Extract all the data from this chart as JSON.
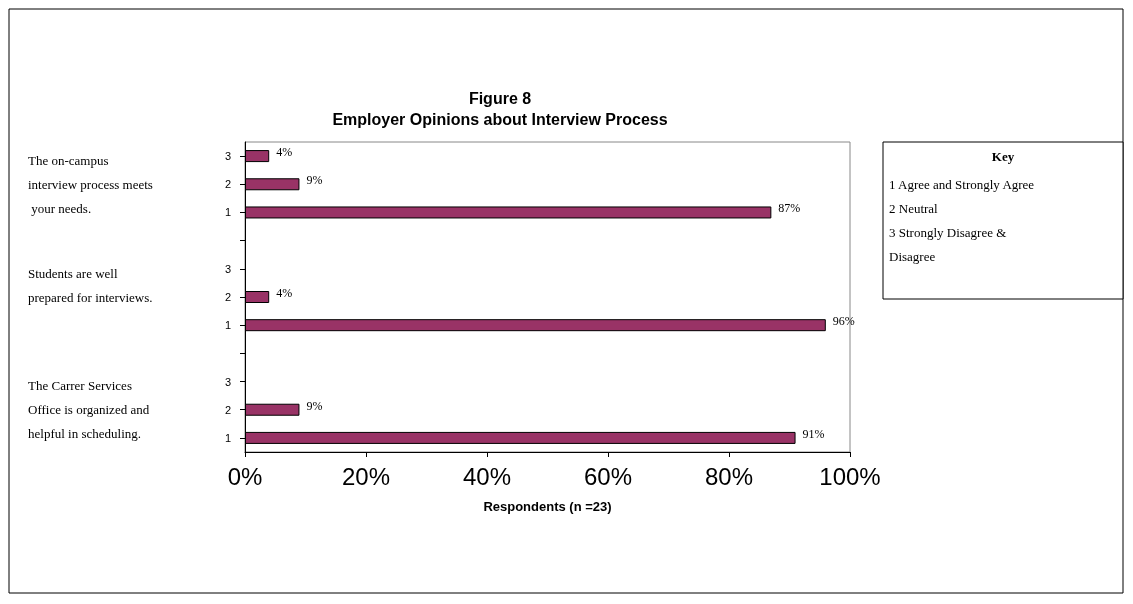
{
  "chart_data": {
    "type": "bar",
    "orientation": "horizontal",
    "title": "Figure 8\nEmployer Opinions about Interview Process",
    "xlabel": "Respondents (n =23)",
    "categories": [
      "3",
      "2",
      "1",
      null,
      "3",
      "2",
      "1",
      null,
      "3",
      "2",
      "1"
    ],
    "values": [
      4,
      9,
      87,
      null,
      null,
      4,
      96,
      null,
      null,
      9,
      91
    ],
    "value_labels": [
      "4%",
      "9%",
      "87%",
      null,
      null,
      "4%",
      "96%",
      null,
      null,
      "9%",
      "91%"
    ],
    "color": "#993366",
    "xlim": [
      0,
      100
    ],
    "xticks": [
      {
        "value": 0,
        "label": "0%"
      },
      {
        "value": 20,
        "label": "20%"
      },
      {
        "value": 40,
        "label": "40%"
      },
      {
        "value": 60,
        "label": "60%"
      },
      {
        "value": 80,
        "label": "80%"
      },
      {
        "value": 100,
        "label": "100%"
      }
    ],
    "grid": false,
    "annotations": [
      "The on-campus interview process meets your needs.",
      "Students are well prepared for interviews.",
      "The Carrer Services Office is organized and helpful in scheduling.",
      "Key",
      "1 Agree and Strongly Agree",
      "2 Neutral",
      "3 Strongly Disagree & Disagree"
    ]
  }
}
